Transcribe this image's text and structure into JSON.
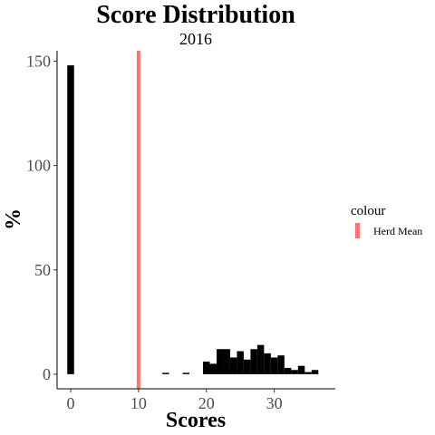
{
  "chart_data": {
    "type": "bar",
    "title": "Score Distribution",
    "subtitle": "2016",
    "xlabel": "Scores",
    "ylabel": "%",
    "xlim": [
      -2,
      39
    ],
    "ylim": [
      -7,
      155
    ],
    "x_ticks": [
      0,
      10,
      20,
      30
    ],
    "y_ticks": [
      0,
      50,
      100,
      150
    ],
    "bin_width": 1,
    "bins": [
      {
        "x": 0,
        "y": 148
      },
      {
        "x": 14,
        "y": 0.5
      },
      {
        "x": 17,
        "y": 0.5
      },
      {
        "x": 20,
        "y": 6
      },
      {
        "x": 21,
        "y": 5
      },
      {
        "x": 22,
        "y": 12
      },
      {
        "x": 23,
        "y": 12
      },
      {
        "x": 24,
        "y": 8
      },
      {
        "x": 25,
        "y": 11
      },
      {
        "x": 26,
        "y": 7
      },
      {
        "x": 27,
        "y": 12
      },
      {
        "x": 28,
        "y": 14
      },
      {
        "x": 29,
        "y": 10
      },
      {
        "x": 30,
        "y": 8
      },
      {
        "x": 31,
        "y": 9
      },
      {
        "x": 32,
        "y": 3
      },
      {
        "x": 33,
        "y": 2
      },
      {
        "x": 34,
        "y": 4
      },
      {
        "x": 35,
        "y": 1
      },
      {
        "x": 36,
        "y": 2
      }
    ],
    "bar_color": "#000000",
    "reference_line": {
      "x": 10,
      "name": "Herd Mean",
      "color": "#f8766d"
    },
    "legend": {
      "title": "colour",
      "position": "right"
    },
    "grid": false
  }
}
